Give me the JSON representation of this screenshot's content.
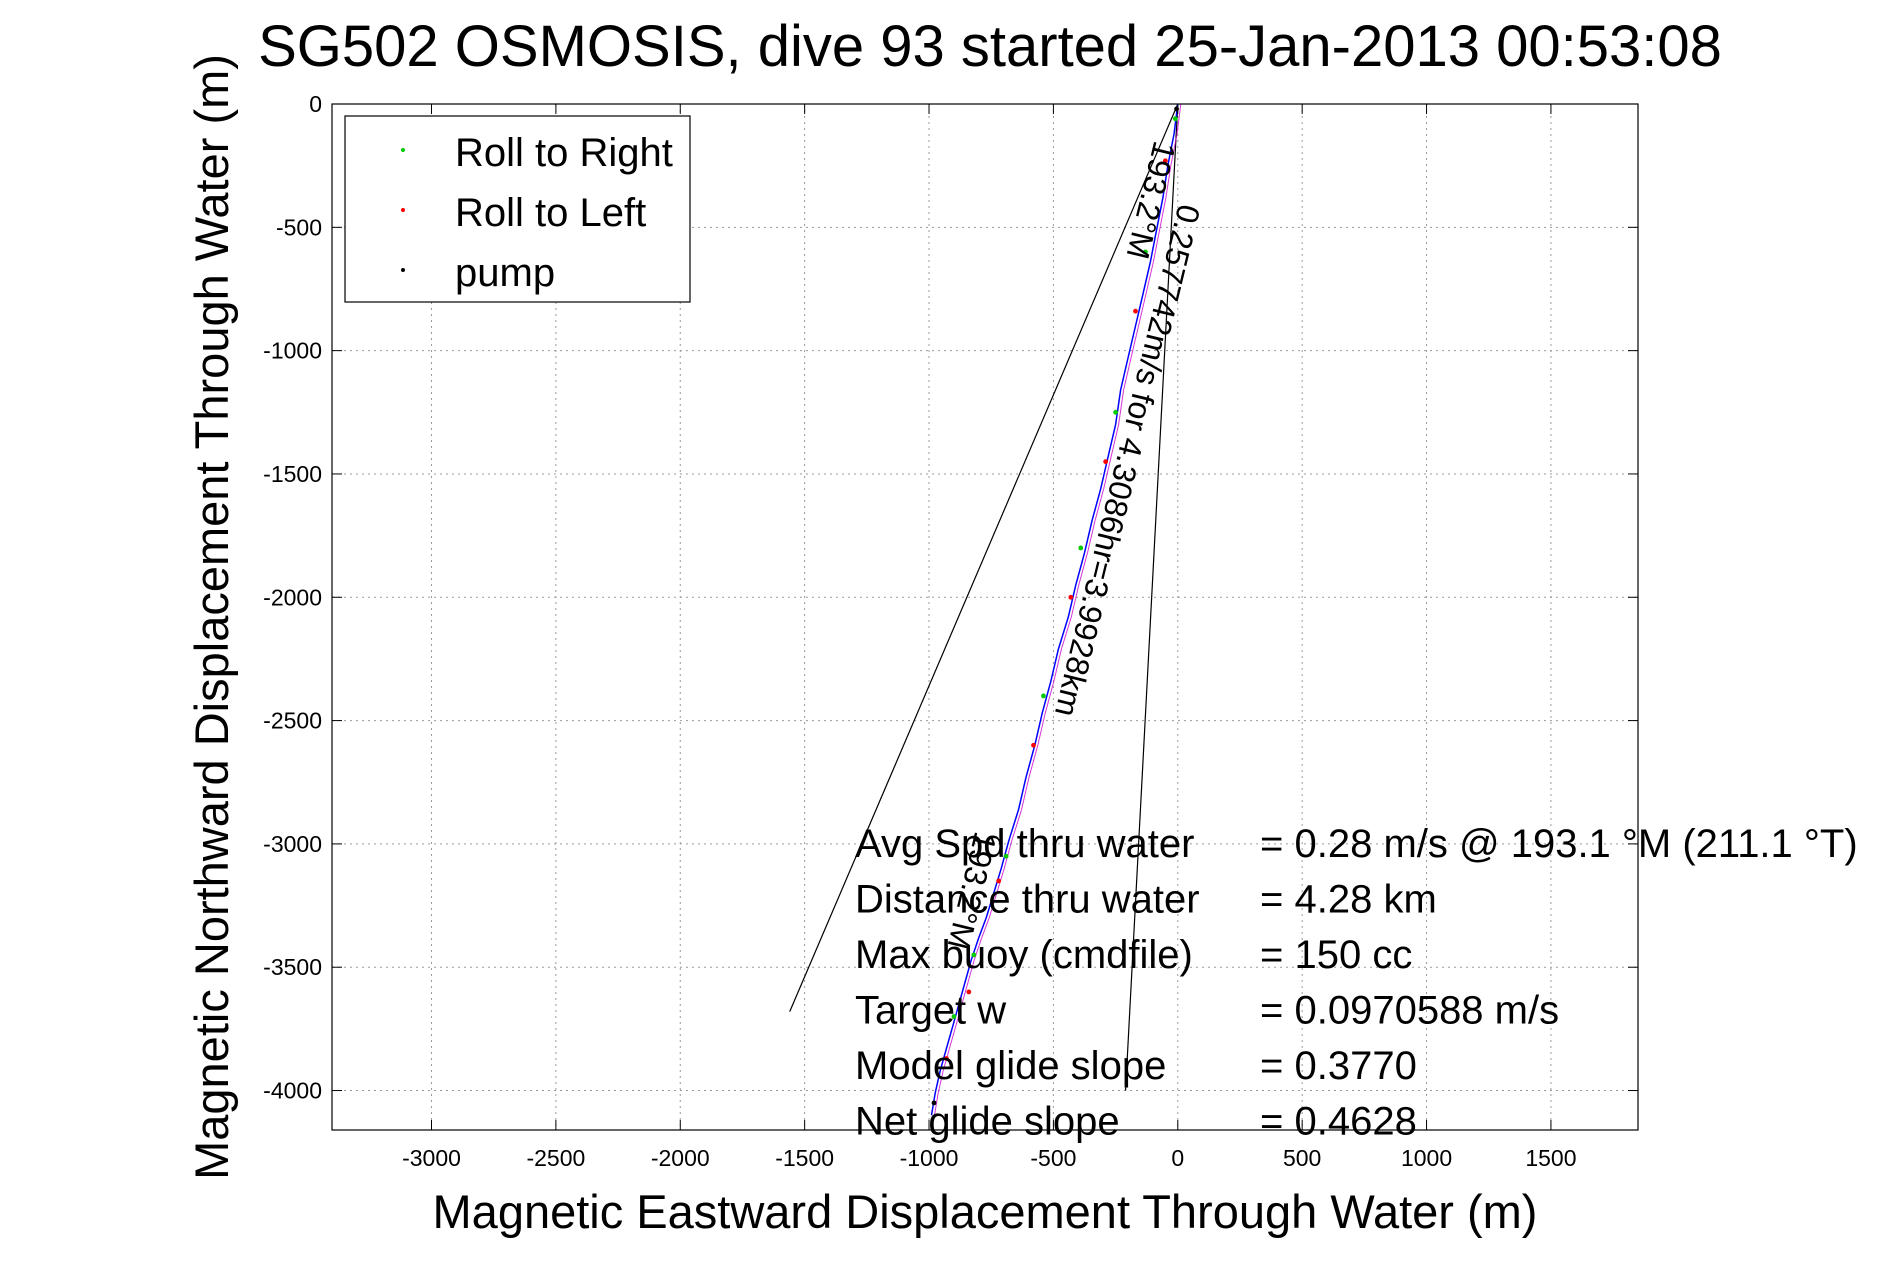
{
  "chart_data": {
    "type": "line",
    "title": "SG502 OSMOSIS, dive 93 started 25-Jan-2013 00:53:08",
    "xlabel": "Magnetic Eastward Displacement Through Water (m)",
    "ylabel": "Magnetic Northward Displacement Through Water (m)",
    "xlim": [
      -3400,
      1850
    ],
    "ylim": [
      -4160,
      0
    ],
    "xticks": [
      -3000,
      -2500,
      -2000,
      -1500,
      -1000,
      -500,
      0,
      500,
      1000,
      1500
    ],
    "yticks": [
      0,
      -500,
      -1000,
      -1500,
      -2000,
      -2500,
      -3000,
      -3500,
      -4000
    ],
    "grid": true,
    "legend_position": "top-left",
    "legend": [
      {
        "name": "Roll to Right",
        "color": "#00cc00"
      },
      {
        "name": "Roll to Left",
        "color": "#ff0000"
      },
      {
        "name": "pump",
        "color": "#000000"
      }
    ],
    "track": {
      "color": "#0000ff",
      "x": [
        0,
        -15,
        -40,
        -60,
        -85,
        -110,
        -140,
        -170,
        -200,
        -230,
        -250,
        -280,
        -310,
        -345,
        -375,
        -410,
        -440,
        -480,
        -510,
        -545,
        -575,
        -610,
        -640,
        -680,
        -710,
        -740,
        -770,
        -800,
        -830,
        -855,
        -880,
        -905,
        -930,
        -955,
        -975,
        -990
      ],
      "y": [
        0,
        -120,
        -250,
        -380,
        -510,
        -640,
        -770,
        -900,
        -1030,
        -1160,
        -1300,
        -1430,
        -1560,
        -1690,
        -1820,
        -1950,
        -2080,
        -2210,
        -2340,
        -2470,
        -2600,
        -2730,
        -2860,
        -2990,
        -3100,
        -3200,
        -3300,
        -3380,
        -3470,
        -3560,
        -3650,
        -3740,
        -3830,
        -3920,
        -4010,
        -4100
      ]
    },
    "roll_right_points": {
      "color": "#00cc00",
      "x": [
        -10,
        -130,
        -250,
        -390,
        -540,
        -690,
        -820,
        -900
      ],
      "y": [
        -60,
        -600,
        -1250,
        -1800,
        -2400,
        -3050,
        -3450,
        -3700
      ]
    },
    "roll_left_points": {
      "color": "#ff0000",
      "x": [
        -50,
        -170,
        -290,
        -430,
        -580,
        -720,
        -840,
        -930
      ],
      "y": [
        -230,
        -840,
        -1450,
        -2000,
        -2600,
        -3150,
        -3600,
        -3870
      ]
    },
    "pump_points": {
      "color": "#000000",
      "x": [
        -5,
        -980
      ],
      "y": [
        -20,
        -4050
      ]
    },
    "heading_lines": [
      {
        "x": [
          0,
          -1560
        ],
        "y": [
          0,
          -3680
        ]
      },
      {
        "x": [
          0,
          -210
        ],
        "y": [
          0,
          -4000
        ]
      }
    ],
    "track_annotations": [
      {
        "text": "0.257742m/s for 4.3086hr=3.9928km",
        "x": 5,
        "y": -400
      },
      {
        "text": "193.2°M",
        "x": -150,
        "y": -380
      },
      {
        "text": "193.2°M",
        "x": -870,
        "y": -3180
      }
    ],
    "stats": [
      {
        "label": "Avg Spd thru water",
        "value": "=  0.28 m/s @ 193.1 °M (211.1 °T)"
      },
      {
        "label": "Distance thru water",
        "value": "=  4.28 km"
      },
      {
        "label": "Max buoy (cmdfile)",
        "value": "= 150 cc"
      },
      {
        "label": "Target w",
        "value": "= 0.0970588 m/s"
      },
      {
        "label": "Model glide slope",
        "value": "= 0.3770"
      },
      {
        "label": "Net glide slope",
        "value": "= 0.4628"
      }
    ]
  }
}
